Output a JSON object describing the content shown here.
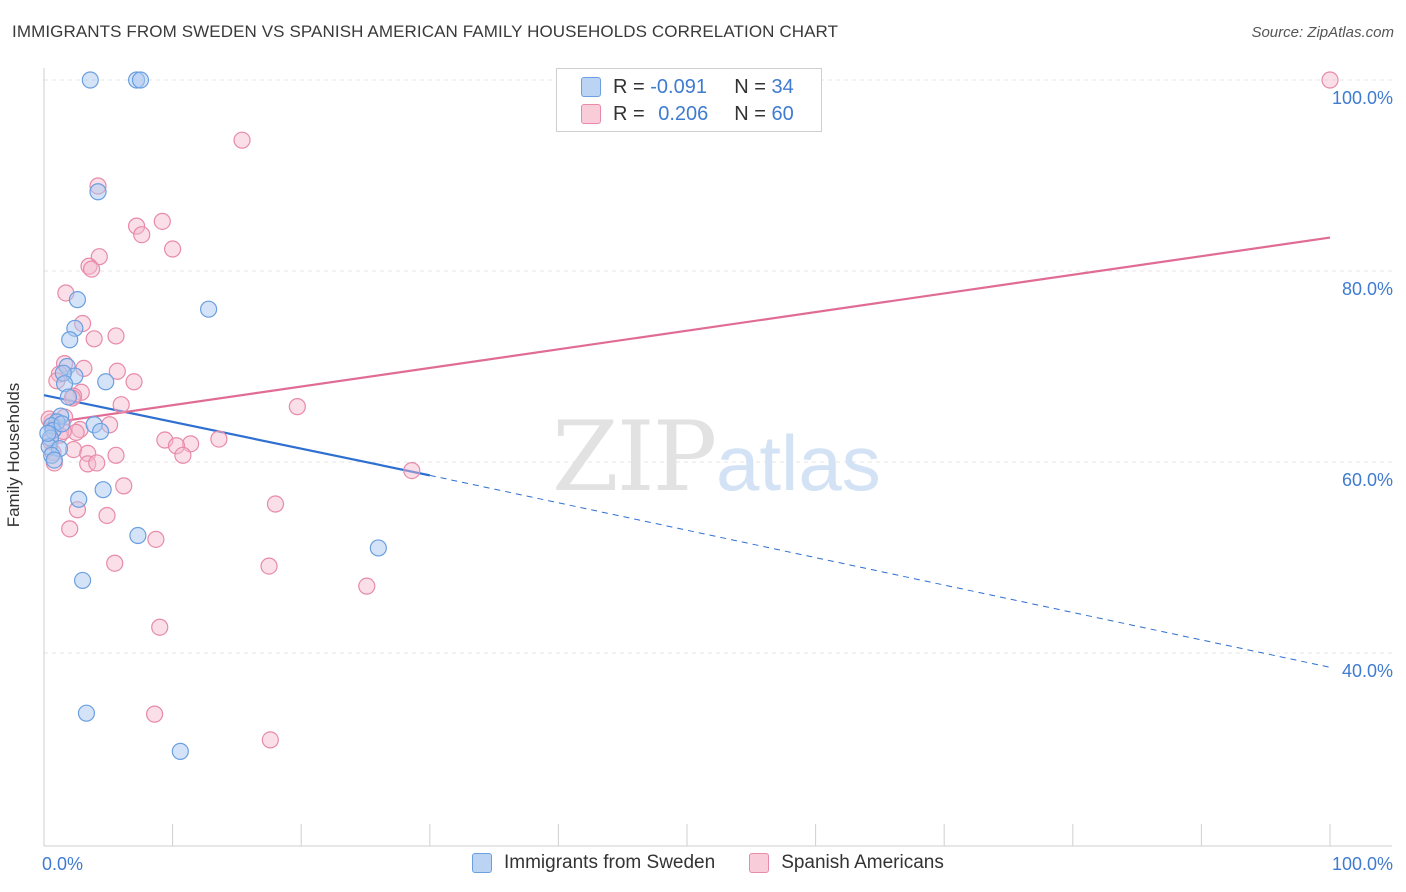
{
  "title": "IMMIGRANTS FROM SWEDEN VS SPANISH AMERICAN FAMILY HOUSEHOLDS CORRELATION CHART",
  "source": "Source: ZipAtlas.com",
  "watermark": {
    "zip": "ZIP",
    "atlas": "atlas"
  },
  "legend": {
    "rows": [
      {
        "r_label": "R =",
        "r_value": "-0.091",
        "n_label": "N =",
        "n_value": "34"
      },
      {
        "r_label": "R =",
        "r_value": "0.206",
        "n_label": "N =",
        "n_value": "60"
      }
    ]
  },
  "bottom_legend": [
    "Immigrants from Sweden",
    "Spanish Americans"
  ],
  "colors": {
    "blue_fill": "#a9c8f0",
    "blue_stroke": "#6b9fe0",
    "blue_line": "#2f6fd0",
    "pink_fill": "#f4b8cb",
    "pink_stroke": "#e88aa8",
    "pink_line": "#e06c96",
    "tick_text": "#3f7bd0",
    "grid": "#e4e4e4"
  },
  "chart_data": {
    "type": "scatter",
    "title": "IMMIGRANTS FROM SWEDEN VS SPANISH AMERICAN FAMILY HOUSEHOLDS CORRELATION CHART",
    "xlabel": "",
    "ylabel": "Family Households",
    "xlim": [
      0,
      105
    ],
    "ylim": [
      22,
      102
    ],
    "x_tick_labels": [
      "0.0%",
      "100.0%"
    ],
    "y_tick_labels": [
      "40.0%",
      "60.0%",
      "80.0%",
      "100.0%"
    ],
    "y_ticks": [
      40,
      60,
      80,
      100
    ],
    "grid": true,
    "legend_position": "top-center",
    "series": [
      {
        "name": "Immigrants from Sweden",
        "r": -0.091,
        "n": 34,
        "trend": {
          "x0": 0,
          "y0": 67.0,
          "x1": 30,
          "y1": 58.6,
          "dashed_to_x": 100,
          "dashed_y1": 38.5
        },
        "points": [
          [
            3.6,
            100
          ],
          [
            7.2,
            100
          ],
          [
            7.5,
            100
          ],
          [
            4.2,
            88.3
          ],
          [
            12.8,
            76.0
          ],
          [
            2.6,
            77.0
          ],
          [
            2.4,
            74.0
          ],
          [
            2.0,
            72.8
          ],
          [
            1.8,
            70.0
          ],
          [
            2.4,
            69.0
          ],
          [
            1.5,
            69.3
          ],
          [
            1.6,
            68.2
          ],
          [
            4.8,
            68.4
          ],
          [
            1.9,
            66.8
          ],
          [
            1.3,
            64.8
          ],
          [
            1.0,
            64.2
          ],
          [
            0.6,
            63.8
          ],
          [
            0.7,
            63.3
          ],
          [
            3.9,
            63.9
          ],
          [
            4.4,
            63.2
          ],
          [
            0.5,
            62.5
          ],
          [
            0.4,
            61.6
          ],
          [
            1.2,
            61.4
          ],
          [
            0.6,
            60.7
          ],
          [
            0.8,
            60.2
          ],
          [
            4.6,
            57.1
          ],
          [
            2.7,
            56.1
          ],
          [
            7.3,
            52.3
          ],
          [
            26.0,
            51.0
          ],
          [
            3.0,
            47.6
          ],
          [
            3.3,
            33.7
          ],
          [
            10.6,
            29.7
          ],
          [
            0.3,
            63.0
          ],
          [
            1.4,
            64.0
          ]
        ]
      },
      {
        "name": "Spanish Americans",
        "r": 0.206,
        "n": 60,
        "trend": {
          "x0": 0,
          "y0": 64.0,
          "x1": 100,
          "y1": 83.5
        },
        "points": [
          [
            100,
            100
          ],
          [
            15.4,
            93.7
          ],
          [
            4.2,
            88.9
          ],
          [
            9.2,
            85.2
          ],
          [
            7.2,
            84.7
          ],
          [
            7.6,
            83.8
          ],
          [
            10.0,
            82.3
          ],
          [
            4.3,
            81.5
          ],
          [
            3.5,
            80.5
          ],
          [
            3.7,
            80.2
          ],
          [
            1.7,
            77.7
          ],
          [
            3.0,
            74.5
          ],
          [
            5.6,
            73.2
          ],
          [
            3.9,
            72.9
          ],
          [
            1.6,
            70.3
          ],
          [
            3.1,
            69.8
          ],
          [
            5.7,
            69.5
          ],
          [
            1.2,
            69.2
          ],
          [
            7.0,
            68.4
          ],
          [
            1.0,
            68.5
          ],
          [
            2.9,
            67.3
          ],
          [
            2.3,
            66.9
          ],
          [
            6.0,
            66.0
          ],
          [
            19.7,
            65.8
          ],
          [
            1.6,
            64.7
          ],
          [
            0.6,
            64.2
          ],
          [
            0.9,
            63.6
          ],
          [
            2.8,
            63.4
          ],
          [
            5.1,
            63.9
          ],
          [
            2.5,
            63.1
          ],
          [
            1.2,
            62.8
          ],
          [
            9.4,
            62.3
          ],
          [
            13.6,
            62.4
          ],
          [
            11.4,
            61.9
          ],
          [
            10.3,
            61.7
          ],
          [
            2.3,
            61.3
          ],
          [
            0.7,
            61.0
          ],
          [
            5.6,
            60.7
          ],
          [
            3.4,
            60.9
          ],
          [
            10.8,
            60.7
          ],
          [
            3.4,
            59.8
          ],
          [
            4.1,
            59.9
          ],
          [
            0.8,
            59.9
          ],
          [
            28.6,
            59.1
          ],
          [
            6.2,
            57.5
          ],
          [
            18.0,
            55.6
          ],
          [
            2.6,
            55.0
          ],
          [
            4.9,
            54.4
          ],
          [
            2.0,
            53.0
          ],
          [
            8.7,
            51.9
          ],
          [
            5.5,
            49.4
          ],
          [
            17.5,
            49.1
          ],
          [
            25.1,
            47.0
          ],
          [
            9.0,
            42.7
          ],
          [
            8.6,
            33.6
          ],
          [
            17.6,
            30.9
          ],
          [
            0.4,
            64.5
          ],
          [
            1.5,
            63.2
          ],
          [
            2.2,
            66.7
          ],
          [
            0.5,
            62.2
          ]
        ]
      }
    ]
  }
}
